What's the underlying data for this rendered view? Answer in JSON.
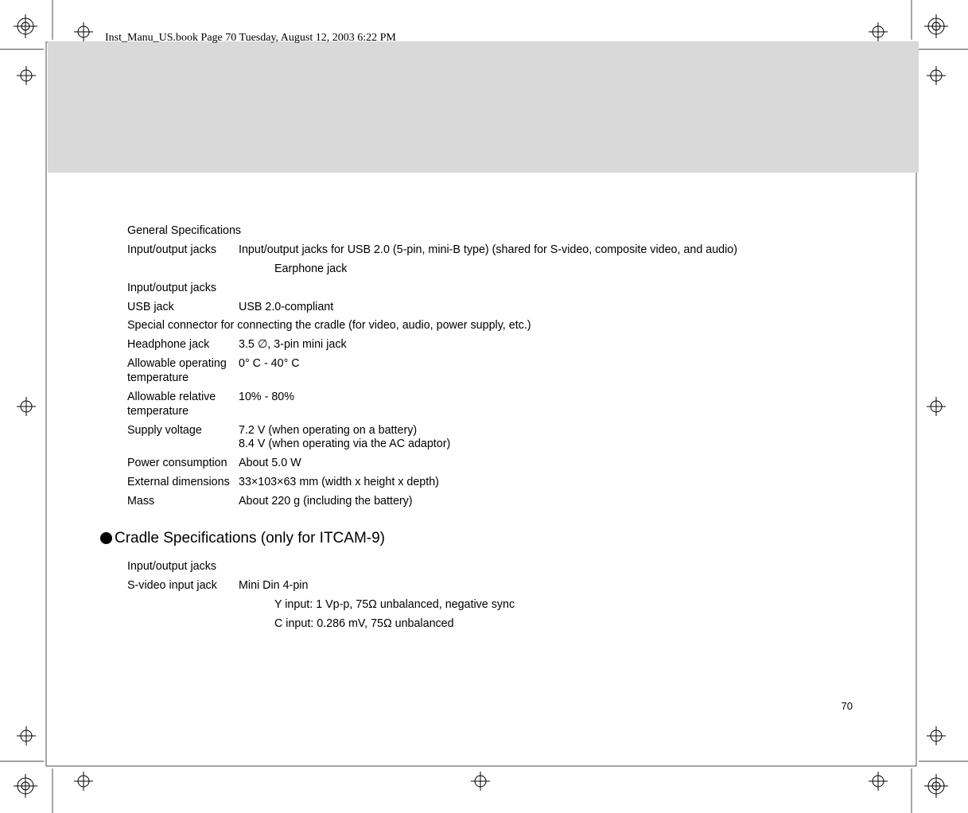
{
  "header": "Inst_Manu_US.book  Page 70  Tuesday, August 12, 2003  6:22 PM",
  "page_number": "70",
  "general": {
    "title": "General Specifications",
    "rows": [
      {
        "label": "Input/output jacks",
        "value": "Input/output jacks for USB 2.0 (5-pin, mini-B type) (shared for S-video, composite video, and audio)"
      },
      {
        "label": "",
        "value": "Earphone jack",
        "indent": true
      },
      {
        "label": "Input/output jacks",
        "value": ""
      },
      {
        "label": "USB jack",
        "value": "USB 2.0-compliant"
      },
      {
        "label": "Special connector for connecting the cradle (for video, audio, power supply, etc.)",
        "value": "",
        "full": true
      },
      {
        "label": "Headphone jack",
        "value": "3.5 ∅, 3-pin mini jack"
      },
      {
        "label": "Allowable operating temperature",
        "value": "0° C - 40° C"
      },
      {
        "label": "Allowable relative temperature",
        "value": "10% - 80%"
      },
      {
        "label": "Supply voltage",
        "value": "7.2 V (when operating on a battery)\n8.4 V (when operating via the AC adaptor)"
      },
      {
        "label": "Power consumption",
        "value": "About 5.0 W"
      },
      {
        "label": "External dimensions",
        "value": "33×103×63 mm (width x height x depth)"
      },
      {
        "label": "Mass",
        "value": "About 220 g (including the battery)"
      }
    ]
  },
  "cradle": {
    "title": "Cradle Specifications (only for ITCAM-9)",
    "subtitle": "Input/output jacks",
    "rows": [
      {
        "label": "S-video input jack",
        "value": "Mini Din 4-pin"
      },
      {
        "label": "",
        "value": "Y input: 1 Vp-p, 75Ω unbalanced, negative sync",
        "indent": true
      },
      {
        "label": "",
        "value": "C input: 0.286 mV, 75Ω unbalanced",
        "indent": true
      }
    ]
  }
}
